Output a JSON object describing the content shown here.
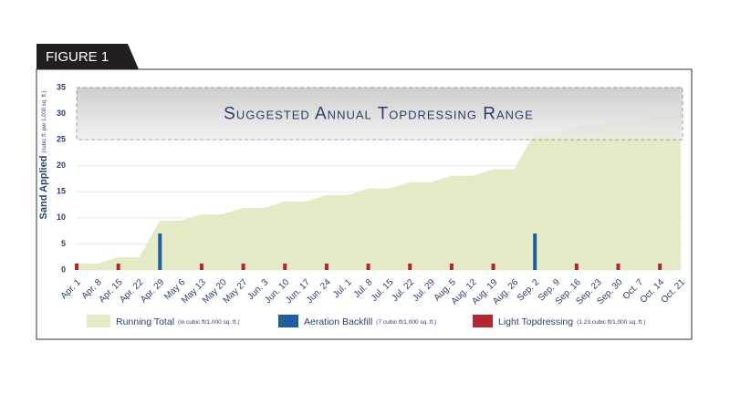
{
  "figure_label": "FIGURE 1",
  "chart_data": {
    "type": "area-bar",
    "y_label": "Sand Applied",
    "y_label_note": "(cubic ft. per 1,000 sq. ft.)",
    "range_band": {
      "label": "Suggested Annual Topdressing Range",
      "from": 25,
      "to": 35
    },
    "categories": [
      "Apr. 1",
      "Apr. 8",
      "Apr. 15",
      "Apr. 22",
      "Apr. 29",
      "May 6",
      "May 13",
      "May 20",
      "May 27",
      "Jun. 3",
      "Jun. 10",
      "Jun. 17",
      "Jun. 24",
      "Jul. 1",
      "Jul. 8",
      "Jul. 15",
      "Jul. 22",
      "Jul. 29",
      "Aug. 5",
      "Aug. 12",
      "Aug. 19",
      "Aug. 26",
      "Sep. 2",
      "Sep. 9",
      "Sep. 16",
      "Sep. 23",
      "Sep. 30",
      "Oct. 7",
      "Oct. 14",
      "Oct. 21"
    ],
    "series": [
      {
        "name": "Running Total",
        "note": "(in cubic ft/1,000 sq. ft.)",
        "kind": "area",
        "color": "#e4e9c6",
        "values": [
          1.23,
          1.23,
          2.46,
          2.46,
          9.46,
          9.46,
          10.69,
          10.69,
          11.92,
          11.92,
          13.15,
          13.15,
          14.38,
          14.38,
          15.61,
          15.61,
          16.84,
          16.84,
          18.07,
          18.07,
          19.3,
          19.3,
          26.3,
          26.3,
          27.53,
          27.53,
          28.76,
          28.76,
          29.99,
          29.99
        ]
      },
      {
        "name": "Aeration Backfill",
        "note": "(7 cubic ft/1,000 sq. ft.)",
        "kind": "bar",
        "color": "#1f5d9c",
        "values": [
          null,
          null,
          null,
          null,
          7,
          null,
          null,
          null,
          null,
          null,
          null,
          null,
          null,
          null,
          null,
          null,
          null,
          null,
          null,
          null,
          null,
          null,
          7,
          null,
          null,
          null,
          null,
          null,
          null,
          null
        ]
      },
      {
        "name": "Light Topdressing",
        "note": "(1.23 cubic ft/1,000 sq. ft.)",
        "kind": "bar",
        "color": "#b3252f",
        "values": [
          1.23,
          null,
          1.23,
          null,
          null,
          null,
          1.23,
          null,
          1.23,
          null,
          1.23,
          null,
          1.23,
          null,
          1.23,
          null,
          1.23,
          null,
          1.23,
          null,
          1.23,
          null,
          null,
          null,
          1.23,
          null,
          1.23,
          null,
          1.23,
          null
        ]
      }
    ],
    "ylim": [
      0,
      35
    ],
    "yticks": [
      0,
      5,
      10,
      15,
      20,
      25,
      30,
      35
    ],
    "grid": true
  }
}
